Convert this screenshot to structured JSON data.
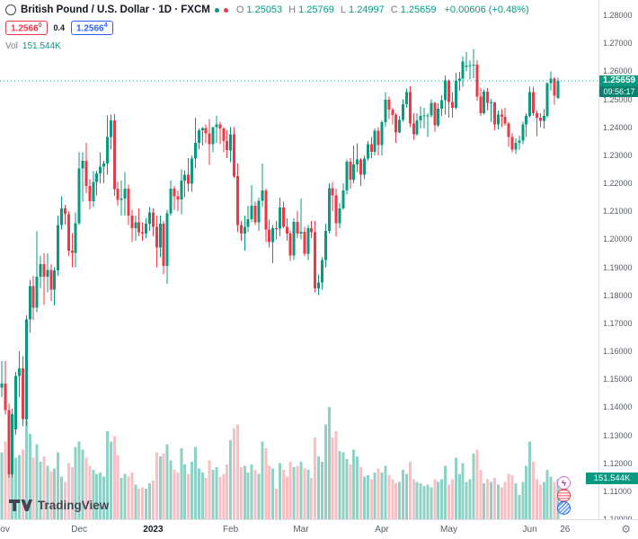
{
  "header": {
    "symbol_title": "British Pound / U.S. Dollar · 1D · FXCM",
    "o_label": "O",
    "o": "1.25053",
    "h_label": "H",
    "h": "1.25769",
    "l_label": "L",
    "l": "1.24997",
    "c_label": "C",
    "c": "1.25659",
    "change": "+0.00606 (+0.48%)",
    "sell_price": "1.2566",
    "sell_sup": "0",
    "spread": "0.4",
    "buy_price": "1.2566",
    "buy_sup": "4",
    "vol_label": "Vol",
    "vol_value": "151.544K"
  },
  "last": {
    "price": 1.25659,
    "price_label": "1.25659",
    "countdown": "09:56:17",
    "vol_k": 151.544,
    "vol_label": "151.544K"
  },
  "logo": {
    "text": "TradingView"
  },
  "icons": {
    "gear": "⚙",
    "lightning": "ϟ"
  },
  "colors": {
    "up": "#089981",
    "down": "#f23645",
    "vol_up": "rgba(8,153,129,0.45)",
    "vol_down": "rgba(242,54,69,0.32)",
    "accent_buy": "#2962ff",
    "label_bg": "#089981"
  },
  "price_axis": {
    "ticks": [
      {
        "label": "1.28000",
        "price": 1.28
      },
      {
        "label": "1.27000",
        "price": 1.27
      },
      {
        "label": "1.26000",
        "price": 1.26
      },
      {
        "label": "1.25000",
        "price": 1.25
      },
      {
        "label": "1.24000",
        "price": 1.24
      },
      {
        "label": "1.23000",
        "price": 1.23
      },
      {
        "label": "1.22000",
        "price": 1.22
      },
      {
        "label": "1.21000",
        "price": 1.21
      },
      {
        "label": "1.20000",
        "price": 1.2
      },
      {
        "label": "1.19000",
        "price": 1.19
      },
      {
        "label": "1.18000",
        "price": 1.18
      },
      {
        "label": "1.17000",
        "price": 1.17
      },
      {
        "label": "1.16000",
        "price": 1.16
      },
      {
        "label": "1.15000",
        "price": 1.15
      },
      {
        "label": "1.14000",
        "price": 1.14
      },
      {
        "label": "1.13000",
        "price": 1.13
      },
      {
        "label": "1.12000",
        "price": 1.12
      },
      {
        "label": "1.11000",
        "price": 1.11
      },
      {
        "label": "1.10000",
        "price": 1.1
      }
    ]
  },
  "time_axis": {
    "ticks": [
      {
        "label": "Nov",
        "slot": 0
      },
      {
        "label": "Dec",
        "slot": 22
      },
      {
        "label": "2023",
        "slot": 43,
        "bold": true
      },
      {
        "label": "Feb",
        "slot": 65
      },
      {
        "label": "Mar",
        "slot": 85
      },
      {
        "label": "Apr",
        "slot": 108
      },
      {
        "label": "May",
        "slot": 127
      },
      {
        "label": "Jun",
        "slot": 150
      },
      {
        "label": "26",
        "slot": 160
      }
    ]
  },
  "chart_data": {
    "type": "candlestick",
    "title": "British Pound / U.S. Dollar",
    "symbol": "GBP/USD",
    "interval": "1D",
    "exchange": "FXCM",
    "date_range": "Nov 2022 – Jun 2023 (daily candles)",
    "ylim": [
      1.1,
      1.28
    ],
    "grid": "off",
    "legend": "none",
    "slots": 170,
    "volume_max_k": 420,
    "columns": [
      "open",
      "high",
      "low",
      "close",
      "volume_k"
    ],
    "candles": [
      [
        1.147,
        1.1565,
        1.1437,
        1.1484,
        250
      ],
      [
        1.1484,
        1.1564,
        1.1374,
        1.139,
        290
      ],
      [
        1.139,
        1.1412,
        1.1148,
        1.116,
        330
      ],
      [
        1.116,
        1.1394,
        1.115,
        1.1375,
        300
      ],
      [
        1.132,
        1.1527,
        1.1301,
        1.1512,
        230
      ],
      [
        1.1512,
        1.16,
        1.1437,
        1.1539,
        240
      ],
      [
        1.1539,
        1.1582,
        1.1332,
        1.1357,
        260
      ],
      [
        1.1357,
        1.1729,
        1.1334,
        1.1714,
        370
      ],
      [
        1.1714,
        1.1855,
        1.1665,
        1.1832,
        320
      ],
      [
        1.1832,
        1.187,
        1.1712,
        1.1755,
        230
      ],
      [
        1.1755,
        1.2028,
        1.174,
        1.1867,
        280
      ],
      [
        1.1867,
        1.1942,
        1.1825,
        1.1912,
        215
      ],
      [
        1.1912,
        1.195,
        1.1765,
        1.1866,
        235
      ],
      [
        1.1866,
        1.195,
        1.181,
        1.189,
        200
      ],
      [
        1.189,
        1.1912,
        1.178,
        1.182,
        180
      ],
      [
        1.182,
        1.19,
        1.1763,
        1.1888,
        190
      ],
      [
        1.1888,
        1.2085,
        1.187,
        1.205,
        250
      ],
      [
        1.205,
        1.2153,
        1.2035,
        1.211,
        160
      ],
      [
        1.211,
        1.2123,
        1.2052,
        1.209,
        140
      ],
      [
        1.209,
        1.21,
        1.194,
        1.196,
        210
      ],
      [
        1.196,
        1.2022,
        1.19,
        1.1952,
        195
      ],
      [
        1.1952,
        1.2095,
        1.19,
        1.2058,
        270
      ],
      [
        1.2058,
        1.231,
        1.205,
        1.2253,
        290
      ],
      [
        1.2253,
        1.231,
        1.2135,
        1.228,
        260
      ],
      [
        1.228,
        1.2345,
        1.2165,
        1.219,
        230
      ],
      [
        1.219,
        1.2215,
        1.2107,
        1.2135,
        200
      ],
      [
        1.2135,
        1.2243,
        1.2115,
        1.2205,
        185
      ],
      [
        1.2205,
        1.2245,
        1.2157,
        1.2235,
        170
      ],
      [
        1.2235,
        1.231,
        1.22,
        1.226,
        175
      ],
      [
        1.226,
        1.228,
        1.22,
        1.227,
        160
      ],
      [
        1.227,
        1.2443,
        1.223,
        1.2365,
        330
      ],
      [
        1.2365,
        1.2446,
        1.232,
        1.2425,
        290
      ],
      [
        1.2425,
        1.2447,
        1.2155,
        1.218,
        310
      ],
      [
        1.218,
        1.2205,
        1.212,
        1.214,
        240
      ],
      [
        1.214,
        1.221,
        1.2085,
        1.2145,
        155
      ],
      [
        1.2145,
        1.224,
        1.2085,
        1.218,
        170
      ],
      [
        1.218,
        1.2195,
        1.205,
        1.2085,
        160
      ],
      [
        1.2085,
        1.2105,
        1.199,
        1.204,
        175
      ],
      [
        1.204,
        1.2085,
        1.1995,
        1.206,
        130
      ],
      [
        1.206,
        1.211,
        1.2013,
        1.2025,
        115
      ],
      [
        1.2025,
        1.206,
        1.1995,
        1.202,
        120
      ],
      [
        1.202,
        1.2075,
        1.2005,
        1.2055,
        115
      ],
      [
        1.2055,
        1.2115,
        1.203,
        1.2095,
        135
      ],
      [
        1.2095,
        1.211,
        1.201,
        1.2045,
        145
      ],
      [
        1.2045,
        1.2085,
        1.19,
        1.197,
        250
      ],
      [
        1.197,
        1.2085,
        1.1935,
        1.2055,
        235
      ],
      [
        1.2055,
        1.2065,
        1.1875,
        1.1905,
        245
      ],
      [
        1.1905,
        1.2105,
        1.184,
        1.2092,
        280
      ],
      [
        1.2092,
        1.221,
        1.2085,
        1.218,
        220
      ],
      [
        1.218,
        1.219,
        1.2105,
        1.2153,
        185
      ],
      [
        1.2153,
        1.2175,
        1.21,
        1.2142,
        175
      ],
      [
        1.2142,
        1.225,
        1.209,
        1.221,
        265
      ],
      [
        1.221,
        1.2247,
        1.215,
        1.223,
        205
      ],
      [
        1.223,
        1.229,
        1.217,
        1.2198,
        170
      ],
      [
        1.2198,
        1.23,
        1.217,
        1.2288,
        215
      ],
      [
        1.2288,
        1.2435,
        1.2255,
        1.2345,
        270
      ],
      [
        1.2345,
        1.2395,
        1.232,
        1.239,
        190
      ],
      [
        1.239,
        1.24,
        1.2335,
        1.2397,
        175
      ],
      [
        1.2397,
        1.241,
        1.2345,
        1.2378,
        155
      ],
      [
        1.2378,
        1.243,
        1.2265,
        1.234,
        220
      ],
      [
        1.234,
        1.24,
        1.231,
        1.24,
        185
      ],
      [
        1.24,
        1.244,
        1.2345,
        1.241,
        195
      ],
      [
        1.241,
        1.242,
        1.234,
        1.2395,
        160
      ],
      [
        1.2395,
        1.24,
        1.231,
        1.235,
        170
      ],
      [
        1.235,
        1.239,
        1.229,
        1.2318,
        205
      ],
      [
        1.2318,
        1.24,
        1.2275,
        1.2375,
        295
      ],
      [
        1.2375,
        1.24,
        1.222,
        1.2225,
        340
      ],
      [
        1.2225,
        1.227,
        1.2025,
        1.205,
        355
      ],
      [
        1.205,
        1.2065,
        1.1995,
        1.202,
        195
      ],
      [
        1.202,
        1.2085,
        1.196,
        1.2045,
        200
      ],
      [
        1.2045,
        1.212,
        1.2025,
        1.2072,
        175
      ],
      [
        1.2072,
        1.2194,
        1.206,
        1.212,
        205
      ],
      [
        1.212,
        1.2135,
        1.205,
        1.206,
        185
      ],
      [
        1.206,
        1.2148,
        1.203,
        1.2137,
        170
      ],
      [
        1.2137,
        1.227,
        1.2115,
        1.2175,
        290
      ],
      [
        1.2175,
        1.218,
        1.199,
        1.2035,
        265
      ],
      [
        1.2035,
        1.207,
        1.197,
        1.199,
        200
      ],
      [
        1.199,
        1.205,
        1.1915,
        1.204,
        190
      ],
      [
        1.204,
        1.2065,
        1.2,
        1.2038,
        115
      ],
      [
        1.2038,
        1.2148,
        1.201,
        1.2113,
        210
      ],
      [
        1.2113,
        1.2135,
        1.204,
        1.2045,
        185
      ],
      [
        1.2045,
        1.2075,
        1.1995,
        1.202,
        160
      ],
      [
        1.202,
        1.203,
        1.1923,
        1.1942,
        215
      ],
      [
        1.1942,
        1.2075,
        1.1925,
        1.2062,
        195
      ],
      [
        1.2062,
        1.21,
        1.2005,
        1.202,
        200
      ],
      [
        1.202,
        1.2145,
        1.2,
        1.2026,
        215
      ],
      [
        1.2026,
        1.2045,
        1.194,
        1.1948,
        190
      ],
      [
        1.1948,
        1.205,
        1.1925,
        1.204,
        185
      ],
      [
        1.204,
        1.2065,
        1.2005,
        1.2025,
        155
      ],
      [
        1.2025,
        1.2065,
        1.181,
        1.1824,
        305
      ],
      [
        1.1824,
        1.1875,
        1.18,
        1.1845,
        235
      ],
      [
        1.1845,
        1.1935,
        1.182,
        1.1925,
        215
      ],
      [
        1.1925,
        1.2055,
        1.19,
        1.203,
        355
      ],
      [
        1.203,
        1.22,
        1.202,
        1.2182,
        420
      ],
      [
        1.2182,
        1.2205,
        1.21,
        1.2157,
        305
      ],
      [
        1.2157,
        1.218,
        1.201,
        1.2057,
        330
      ],
      [
        1.2057,
        1.213,
        1.204,
        1.211,
        255
      ],
      [
        1.211,
        1.22,
        1.2105,
        1.2175,
        250
      ],
      [
        1.2175,
        1.2285,
        1.216,
        1.2277,
        225
      ],
      [
        1.2277,
        1.229,
        1.218,
        1.2213,
        205
      ],
      [
        1.2213,
        1.2335,
        1.22,
        1.2267,
        260
      ],
      [
        1.2267,
        1.2343,
        1.224,
        1.2285,
        235
      ],
      [
        1.2285,
        1.229,
        1.219,
        1.223,
        195
      ],
      [
        1.223,
        1.23,
        1.2215,
        1.2288,
        160
      ],
      [
        1.2288,
        1.235,
        1.228,
        1.234,
        165
      ],
      [
        1.234,
        1.2365,
        1.229,
        1.2312,
        150
      ],
      [
        1.2312,
        1.2395,
        1.23,
        1.2387,
        175
      ],
      [
        1.2387,
        1.24,
        1.23,
        1.2337,
        190
      ],
      [
        1.2337,
        1.2425,
        1.23,
        1.2418,
        175
      ],
      [
        1.2418,
        1.2525,
        1.24,
        1.2498,
        200
      ],
      [
        1.2498,
        1.251,
        1.243,
        1.2463,
        165
      ],
      [
        1.2463,
        1.247,
        1.241,
        1.2444,
        150
      ],
      [
        1.2444,
        1.245,
        1.2345,
        1.2382,
        135
      ],
      [
        1.2382,
        1.244,
        1.238,
        1.2427,
        140
      ],
      [
        1.2427,
        1.25,
        1.242,
        1.2483,
        185
      ],
      [
        1.2483,
        1.2538,
        1.247,
        1.2525,
        170
      ],
      [
        1.2525,
        1.2546,
        1.24,
        1.2414,
        215
      ],
      [
        1.2414,
        1.245,
        1.2355,
        1.2375,
        150
      ],
      [
        1.2375,
        1.245,
        1.237,
        1.2425,
        140
      ],
      [
        1.2425,
        1.2475,
        1.2395,
        1.244,
        135
      ],
      [
        1.244,
        1.247,
        1.2395,
        1.2443,
        125
      ],
      [
        1.2443,
        1.245,
        1.2365,
        1.2443,
        130
      ],
      [
        1.2443,
        1.25,
        1.2435,
        1.2487,
        120
      ],
      [
        1.2487,
        1.249,
        1.2385,
        1.2407,
        150
      ],
      [
        1.2407,
        1.2485,
        1.24,
        1.2467,
        140
      ],
      [
        1.2467,
        1.2515,
        1.244,
        1.2497,
        150
      ],
      [
        1.2497,
        1.2585,
        1.2445,
        1.2567,
        200
      ],
      [
        1.2567,
        1.257,
        1.2435,
        1.249,
        130
      ],
      [
        1.249,
        1.2525,
        1.2435,
        1.247,
        150
      ],
      [
        1.247,
        1.2595,
        1.2465,
        1.2565,
        230
      ],
      [
        1.2565,
        1.2598,
        1.253,
        1.2574,
        170
      ],
      [
        1.2574,
        1.2652,
        1.2545,
        1.2635,
        210
      ],
      [
        1.2615,
        1.2668,
        1.26,
        1.262,
        140
      ],
      [
        1.262,
        1.264,
        1.257,
        1.2622,
        150
      ],
      [
        1.2622,
        1.268,
        1.2575,
        1.2624,
        245
      ],
      [
        1.2624,
        1.264,
        1.2495,
        1.251,
        260
      ],
      [
        1.251,
        1.254,
        1.244,
        1.245,
        185
      ],
      [
        1.245,
        1.2535,
        1.2445,
        1.2527,
        135
      ],
      [
        1.2527,
        1.254,
        1.246,
        1.2487,
        150
      ],
      [
        1.2487,
        1.25,
        1.242,
        1.2488,
        140
      ],
      [
        1.2488,
        1.249,
        1.239,
        1.241,
        155
      ],
      [
        1.241,
        1.246,
        1.2392,
        1.2445,
        130
      ],
      [
        1.2445,
        1.2465,
        1.24,
        1.2437,
        120
      ],
      [
        1.2437,
        1.247,
        1.2405,
        1.2413,
        140
      ],
      [
        1.2413,
        1.242,
        1.233,
        1.2365,
        170
      ],
      [
        1.2365,
        1.238,
        1.231,
        1.2321,
        165
      ],
      [
        1.2321,
        1.236,
        1.2305,
        1.2345,
        135
      ],
      [
        1.2345,
        1.237,
        1.232,
        1.2353,
        90
      ],
      [
        1.2353,
        1.242,
        1.234,
        1.241,
        140
      ],
      [
        1.241,
        1.245,
        1.2365,
        1.244,
        200
      ],
      [
        1.244,
        1.2545,
        1.2435,
        1.2525,
        290
      ],
      [
        1.2525,
        1.2545,
        1.244,
        1.245,
        215
      ],
      [
        1.245,
        1.246,
        1.2369,
        1.2435,
        150
      ],
      [
        1.2435,
        1.245,
        1.24,
        1.2423,
        130
      ],
      [
        1.2423,
        1.2465,
        1.2395,
        1.244,
        140
      ],
      [
        1.244,
        1.256,
        1.2435,
        1.2557,
        185
      ],
      [
        1.2557,
        1.26,
        1.253,
        1.2573,
        160
      ],
      [
        1.2573,
        1.258,
        1.248,
        1.2513,
        140
      ],
      [
        1.25053,
        1.25769,
        1.24997,
        1.25659,
        151.544
      ]
    ]
  }
}
